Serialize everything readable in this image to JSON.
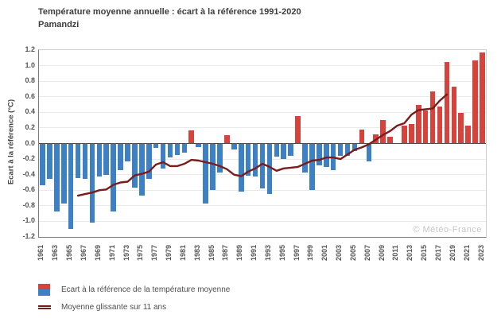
{
  "header": {
    "title": "Température moyenne annuelle : écart à la référence 1991-2020",
    "subtitle": "Pamandzi"
  },
  "watermark": "© Météo-France",
  "legend": {
    "items": [
      {
        "label": "Ecart à la référence de la température moyenne",
        "swatch": "bar-red-blue"
      },
      {
        "label": "Moyenne glissante sur 11 ans",
        "swatch": "dark-red-line"
      }
    ]
  },
  "colors": {
    "bar_positive": "#d6423c",
    "bar_negative": "#3d80c4",
    "running_mean_line": "#7a1c1c",
    "grid": "#e9e9e9",
    "zero_line": "#4d4d4d",
    "axis": "#7d7d7d",
    "tick_text": "#555555",
    "watermark_text": "#c6c6c6"
  },
  "chart_data": {
    "type": "bar",
    "title": "Température moyenne annuelle : écart à la référence 1991-2020",
    "subtitle": "Pamandzi",
    "ylabel": "Ecart à la référence (°C)",
    "xlabel": "",
    "ylim": [
      -1.2,
      1.2
    ],
    "ytick_step": 0.2,
    "grid": true,
    "legend_position": "bottom-left",
    "x_tick_years": [
      1961,
      1963,
      1965,
      1967,
      1969,
      1971,
      1973,
      1975,
      1977,
      1979,
      1981,
      1983,
      1985,
      1987,
      1989,
      1991,
      1993,
      1995,
      1997,
      1999,
      2001,
      2003,
      2005,
      2007,
      2009,
      2011,
      2013,
      2015,
      2017,
      2019,
      2021,
      2023
    ],
    "y_ticks": [
      "1.2",
      "1.0",
      "0.8",
      "0.6",
      "0.4",
      "0.2",
      "0.0",
      "-0.2",
      "-0.4",
      "-0.6",
      "-0.8",
      "-1.0",
      "-1.2"
    ],
    "x": [
      1961,
      1962,
      1963,
      1964,
      1965,
      1966,
      1967,
      1968,
      1969,
      1970,
      1971,
      1972,
      1973,
      1974,
      1975,
      1976,
      1977,
      1978,
      1979,
      1980,
      1981,
      1982,
      1983,
      1984,
      1985,
      1986,
      1987,
      1988,
      1989,
      1990,
      1991,
      1992,
      1993,
      1994,
      1995,
      1996,
      1997,
      1998,
      1999,
      2000,
      2001,
      2002,
      2003,
      2004,
      2005,
      2006,
      2007,
      2008,
      2009,
      2010,
      2011,
      2012,
      2013,
      2014,
      2015,
      2016,
      2017,
      2018,
      2019,
      2020,
      2021,
      2022,
      2023
    ],
    "series": [
      {
        "name": "Ecart à la référence de la température moyenne",
        "type": "bar",
        "values": [
          -0.54,
          -0.45,
          -0.87,
          -0.77,
          -1.1,
          -0.44,
          -0.45,
          -1.02,
          -0.42,
          -0.4,
          -0.87,
          -0.34,
          -0.23,
          -0.57,
          -0.67,
          -0.45,
          -0.06,
          -0.32,
          -0.18,
          -0.15,
          -0.12,
          0.17,
          -0.05,
          -0.77,
          -0.6,
          -0.37,
          0.11,
          -0.08,
          -0.62,
          -0.41,
          -0.42,
          -0.58,
          -0.65,
          -0.17,
          -0.2,
          -0.16,
          0.35,
          -0.37,
          -0.6,
          -0.28,
          -0.3,
          -0.34,
          -0.16,
          -0.16,
          -0.1,
          0.18,
          -0.23,
          0.12,
          0.3,
          0.09,
          0.01,
          0.23,
          0.25,
          0.5,
          0.42,
          0.67,
          0.47,
          1.05,
          0.73,
          0.39,
          0.23,
          1.07,
          1.17
        ]
      },
      {
        "name": "Moyenne glissante sur 11 ans",
        "type": "line",
        "x_start": 1966,
        "x_end": 2018,
        "values": [
          -0.67,
          -0.65,
          -0.63,
          -0.6,
          -0.59,
          -0.53,
          -0.5,
          -0.49,
          -0.41,
          -0.39,
          -0.36,
          -0.27,
          -0.24,
          -0.29,
          -0.29,
          -0.26,
          -0.21,
          -0.22,
          -0.24,
          -0.26,
          -0.29,
          -0.33,
          -0.4,
          -0.42,
          -0.36,
          -0.32,
          -0.26,
          -0.3,
          -0.35,
          -0.32,
          -0.31,
          -0.3,
          -0.26,
          -0.22,
          -0.21,
          -0.18,
          -0.18,
          -0.2,
          -0.14,
          -0.08,
          -0.05,
          -0.01,
          0.05,
          0.11,
          0.16,
          0.23,
          0.26,
          0.37,
          0.43,
          0.44,
          0.45,
          0.55,
          0.63
        ]
      }
    ]
  }
}
